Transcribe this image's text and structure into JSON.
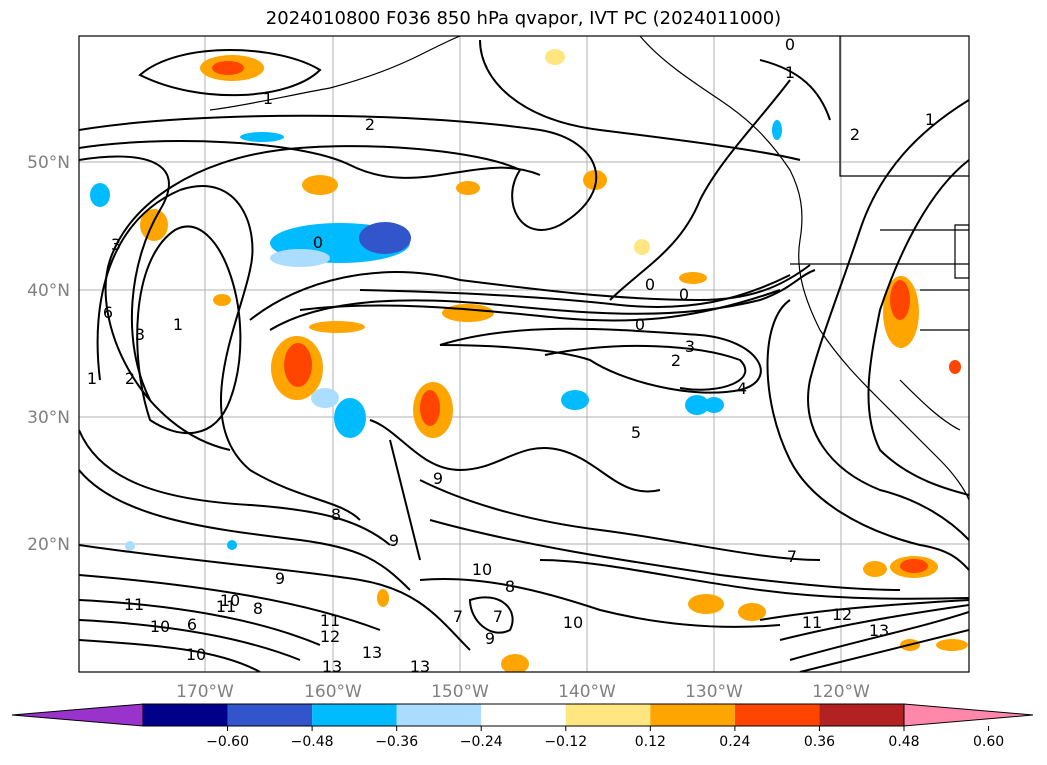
{
  "title": "2024010800 F036 850 hPa qvapor, IVT PC (2024011000)",
  "lat_labels": [
    "50°N",
    "40°N",
    "30°N",
    "20°N"
  ],
  "lon_labels": [
    "170°W",
    "160°W",
    "150°W",
    "140°W",
    "130°W",
    "120°W"
  ],
  "colorbar": {
    "ticks": [
      "−0.60",
      "−0.48",
      "−0.36",
      "−0.24",
      "−0.12",
      "0.12",
      "0.24",
      "0.36",
      "0.48",
      "0.60"
    ],
    "colors": [
      "#9933cc",
      "#00008b",
      "#3355cc",
      "#00bbff",
      "#aaddff",
      "#ffffff",
      "#ffe680",
      "#ffa500",
      "#ff4500",
      "#b22222",
      "#ff88aa"
    ]
  },
  "contour_labels": [
    "1",
    "2",
    "3",
    "0",
    "1",
    "6",
    "1",
    "2",
    "3",
    "7",
    "8",
    "9",
    "10",
    "11",
    "12",
    "13",
    "0",
    "4",
    "5",
    "0",
    "0",
    "2",
    "3",
    "1",
    "2",
    "1",
    "0",
    "10",
    "11",
    "12",
    "13",
    "7",
    "9",
    "10",
    "11",
    "8",
    "7",
    "9",
    "10",
    "11",
    "10",
    "9",
    "8",
    "6",
    "13",
    "13"
  ]
}
